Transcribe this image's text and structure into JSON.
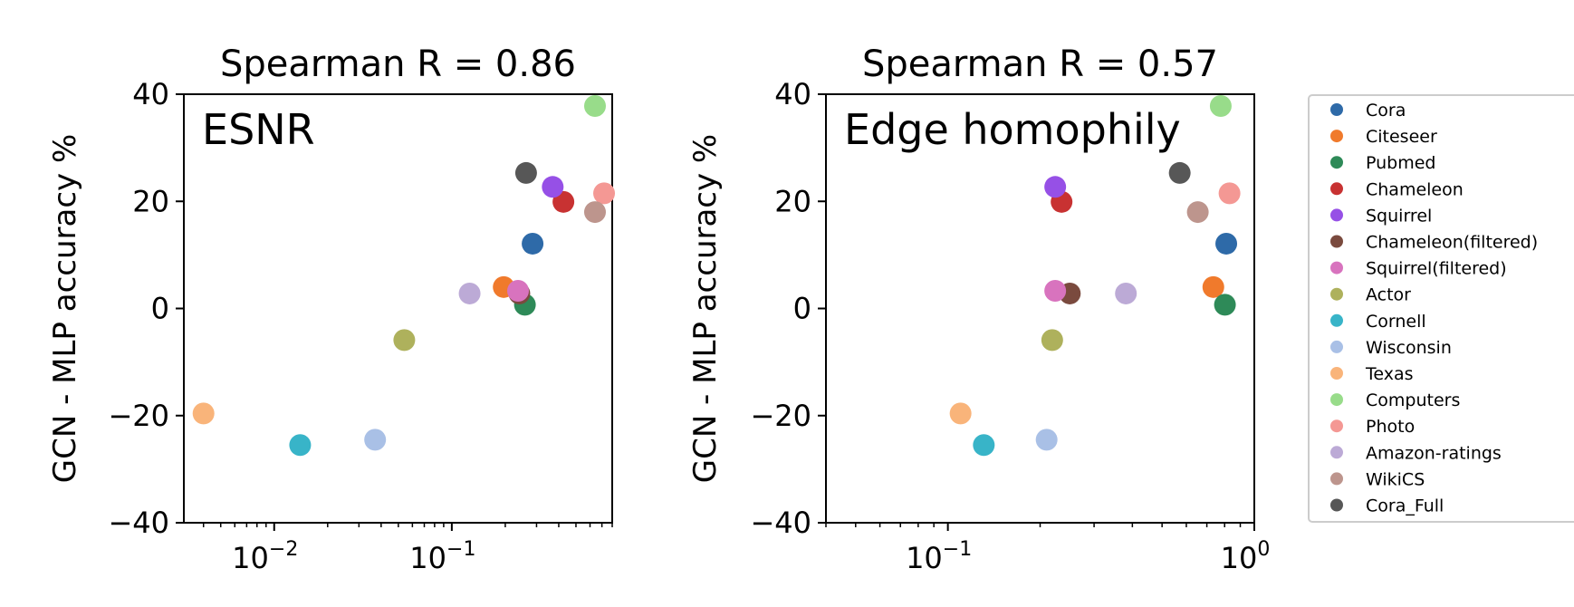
{
  "chart_data": [
    {
      "type": "scatter",
      "title": "Spearman R = 0.86",
      "annotation": "ESNR",
      "xlabel": "",
      "ylabel": "GCN - MLP accuracy %",
      "xscale": "log",
      "xlim": [
        0.0031,
        0.8
      ],
      "ylim": [
        -40,
        40
      ],
      "yticks": [
        40,
        20,
        0,
        -20,
        -40
      ],
      "ytick_labels": [
        "40",
        "20",
        "0",
        "−20",
        "−40"
      ],
      "xticks": [
        {
          "base": "10",
          "exp": "−2",
          "value": 0.01
        },
        {
          "base": "10",
          "exp": "−1",
          "value": 0.1
        }
      ],
      "grid": false,
      "points": [
        {
          "name": "Cora",
          "x": 0.285,
          "y": 12.1
        },
        {
          "name": "Citeseer",
          "x": 0.196,
          "y": 4.0
        },
        {
          "name": "Pubmed",
          "x": 0.258,
          "y": 0.7
        },
        {
          "name": "Chameleon",
          "x": 0.425,
          "y": 19.9
        },
        {
          "name": "Squirrel",
          "x": 0.37,
          "y": 22.7
        },
        {
          "name": "Chameleon(filtered)",
          "x": 0.24,
          "y": 2.8
        },
        {
          "name": "Squirrel(filtered)",
          "x": 0.236,
          "y": 3.3
        },
        {
          "name": "Actor",
          "x": 0.054,
          "y": -5.9
        },
        {
          "name": "Cornell",
          "x": 0.014,
          "y": -25.5
        },
        {
          "name": "Wisconsin",
          "x": 0.037,
          "y": -24.5
        },
        {
          "name": "Texas",
          "x": 0.004,
          "y": -19.6
        },
        {
          "name": "Computers",
          "x": 0.64,
          "y": 37.8
        },
        {
          "name": "Photo",
          "x": 0.72,
          "y": 21.5
        },
        {
          "name": "Amazon-ratings",
          "x": 0.126,
          "y": 2.8
        },
        {
          "name": "WikiCS",
          "x": 0.64,
          "y": 18.0
        },
        {
          "name": "Cora_Full",
          "x": 0.262,
          "y": 25.3
        }
      ]
    },
    {
      "type": "scatter",
      "title": "Spearman R = 0.57",
      "annotation": "Edge homophily",
      "xlabel": "",
      "ylabel": "GCN - MLP accuracy %",
      "xscale": "log",
      "xlim": [
        0.04,
        1.0
      ],
      "ylim": [
        -40,
        40
      ],
      "yticks": [
        40,
        20,
        0,
        -20,
        -40
      ],
      "ytick_labels": [
        "40",
        "20",
        "0",
        "−20",
        "−40"
      ],
      "xticks": [
        {
          "base": "10",
          "exp": "−1",
          "value": 0.1
        },
        {
          "base": "10",
          "exp": "0",
          "value": 1.0
        }
      ],
      "grid": false,
      "points": [
        {
          "name": "Cora",
          "x": 0.81,
          "y": 12.1
        },
        {
          "name": "Citeseer",
          "x": 0.735,
          "y": 4.0
        },
        {
          "name": "Pubmed",
          "x": 0.802,
          "y": 0.7
        },
        {
          "name": "Chameleon",
          "x": 0.235,
          "y": 19.9
        },
        {
          "name": "Squirrel",
          "x": 0.224,
          "y": 22.7
        },
        {
          "name": "Chameleon(filtered)",
          "x": 0.25,
          "y": 2.8
        },
        {
          "name": "Squirrel(filtered)",
          "x": 0.224,
          "y": 3.3
        },
        {
          "name": "Actor",
          "x": 0.219,
          "y": -5.9
        },
        {
          "name": "Cornell",
          "x": 0.131,
          "y": -25.5
        },
        {
          "name": "Wisconsin",
          "x": 0.21,
          "y": -24.5
        },
        {
          "name": "Texas",
          "x": 0.11,
          "y": -19.6
        },
        {
          "name": "Computers",
          "x": 0.777,
          "y": 37.8
        },
        {
          "name": "Photo",
          "x": 0.83,
          "y": 21.5
        },
        {
          "name": "Amazon-ratings",
          "x": 0.381,
          "y": 2.8
        },
        {
          "name": "WikiCS",
          "x": 0.654,
          "y": 18.0
        },
        {
          "name": "Cora_Full",
          "x": 0.571,
          "y": 25.3
        }
      ]
    }
  ],
  "legend": {
    "placement": "right",
    "entries": [
      {
        "name": "Cora",
        "color": "#2e6aa8"
      },
      {
        "name": "Citeseer",
        "color": "#f07a2c"
      },
      {
        "name": "Pubmed",
        "color": "#2e8a58"
      },
      {
        "name": "Chameleon",
        "color": "#c83232"
      },
      {
        "name": "Squirrel",
        "color": "#9650e6"
      },
      {
        "name": "Chameleon(filtered)",
        "color": "#7a4a3e"
      },
      {
        "name": "Squirrel(filtered)",
        "color": "#d873be"
      },
      {
        "name": "Actor",
        "color": "#aeb15c"
      },
      {
        "name": "Cornell",
        "color": "#38b4c8"
      },
      {
        "name": "Wisconsin",
        "color": "#a9c0e6"
      },
      {
        "name": "Texas",
        "color": "#f9b47a"
      },
      {
        "name": "Computers",
        "color": "#98dc8a"
      },
      {
        "name": "Photo",
        "color": "#f49894"
      },
      {
        "name": "Amazon-ratings",
        "color": "#bcaad6"
      },
      {
        "name": "WikiCS",
        "color": "#bd958d"
      },
      {
        "name": "Cora_Full",
        "color": "#575757"
      }
    ]
  }
}
